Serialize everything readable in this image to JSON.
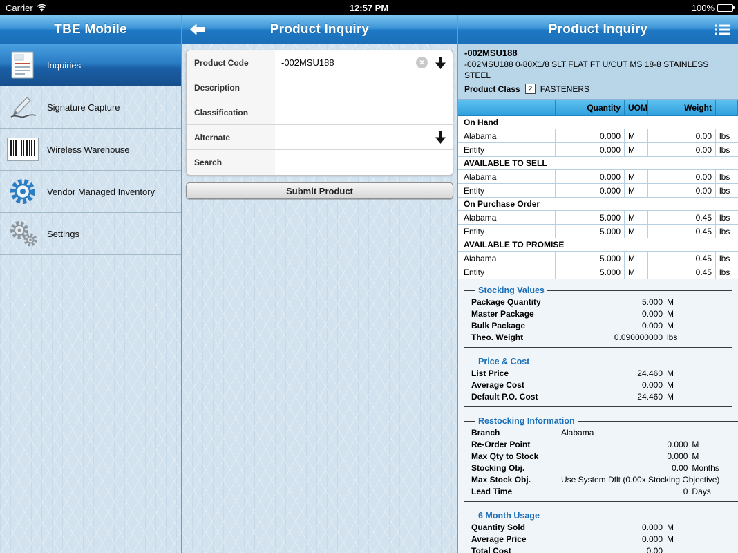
{
  "status_bar": {
    "carrier": "Carrier",
    "time": "12:57 PM",
    "battery": "100%"
  },
  "sidebar": {
    "title": "TBE Mobile",
    "items": [
      {
        "label": "Inquiries",
        "icon": "document-icon",
        "selected": true
      },
      {
        "label": "Signature Capture",
        "icon": "signature-icon",
        "selected": false
      },
      {
        "label": "Wireless Warehouse",
        "icon": "barcode-icon",
        "selected": false
      },
      {
        "label": "Vendor Managed Inventory",
        "icon": "vmi-gear-icon",
        "selected": false
      },
      {
        "label": "Settings",
        "icon": "gears-icon",
        "selected": false
      }
    ]
  },
  "form_panel": {
    "title": "Product Inquiry",
    "fields": [
      {
        "label": "Product Code",
        "value": "-002MSU188",
        "clear": true,
        "arrow": true
      },
      {
        "label": "Description",
        "value": "",
        "clear": false,
        "arrow": false
      },
      {
        "label": "Classification",
        "value": "",
        "clear": false,
        "arrow": false
      },
      {
        "label": "Alternate",
        "value": "",
        "clear": false,
        "arrow": true
      },
      {
        "label": "Search",
        "value": "",
        "clear": false,
        "arrow": false
      }
    ],
    "submit_label": "Submit Product"
  },
  "detail_panel": {
    "title": "Product Inquiry",
    "product": {
      "code": "-002MSU188",
      "description": "-002MSU188 0-80X1/8 SLT FLAT FT U/CUT MS 18-8 STAINLESS STEEL",
      "class_label": "Product Class",
      "class_code": "2",
      "class_name": "FASTENERS"
    },
    "table": {
      "headers": [
        "",
        "Quantity",
        "UOM",
        "Weight",
        ""
      ],
      "sections": [
        {
          "name": "On Hand",
          "rows": [
            [
              "Alabama",
              "0.000",
              "M",
              "0.00",
              "lbs"
            ],
            [
              "Entity",
              "0.000",
              "M",
              "0.00",
              "lbs"
            ]
          ]
        },
        {
          "name": "AVAILABLE TO SELL",
          "rows": [
            [
              "Alabama",
              "0.000",
              "M",
              "0.00",
              "lbs"
            ],
            [
              "Entity",
              "0.000",
              "M",
              "0.00",
              "lbs"
            ]
          ]
        },
        {
          "name": "On Purchase Order",
          "rows": [
            [
              "Alabama",
              "5.000",
              "M",
              "0.45",
              "lbs"
            ],
            [
              "Entity",
              "5.000",
              "M",
              "0.45",
              "lbs"
            ]
          ]
        },
        {
          "name": "AVAILABLE TO PROMISE",
          "rows": [
            [
              "Alabama",
              "5.000",
              "M",
              "0.45",
              "lbs"
            ],
            [
              "Entity",
              "5.000",
              "M",
              "0.45",
              "lbs"
            ]
          ]
        }
      ]
    },
    "groups": [
      {
        "title": "Stocking Values",
        "rows": [
          {
            "label": "Package Quantity",
            "value": "5.000",
            "unit": "M"
          },
          {
            "label": "Master Package",
            "value": "0.000",
            "unit": "M"
          },
          {
            "label": "Bulk Package",
            "value": "0.000",
            "unit": "M"
          },
          {
            "label": "Theo. Weight",
            "value": "0.090000000",
            "unit": "lbs"
          }
        ]
      },
      {
        "title": "Price & Cost",
        "rows": [
          {
            "label": "List Price",
            "value": "24.460",
            "unit": "M"
          },
          {
            "label": "Average Cost",
            "value": "0.000",
            "unit": "M"
          },
          {
            "label": "Default P.O. Cost",
            "value": "24.460",
            "unit": "M"
          }
        ]
      },
      {
        "title": "Restocking Information",
        "rows": [
          {
            "label": "Branch",
            "value": "Alabama",
            "unit": "",
            "align": "left"
          },
          {
            "label": "Re-Order Point",
            "value": "0.000",
            "unit": "M"
          },
          {
            "label": "Max Qty to Stock",
            "value": "0.000",
            "unit": "M"
          },
          {
            "label": "Stocking Obj.",
            "value": "0.00",
            "unit": "Months"
          },
          {
            "label": "Max Stock Obj.",
            "value": "Use System Dflt (0.00x Stocking Objective)",
            "unit": ""
          },
          {
            "label": "Lead Time",
            "value": "0",
            "unit": "Days"
          }
        ]
      },
      {
        "title": "6 Month Usage",
        "rows": [
          {
            "label": "Quantity Sold",
            "value": "0.000",
            "unit": "M"
          },
          {
            "label": "Average Price",
            "value": "0.000",
            "unit": "M"
          },
          {
            "label": "Total Cost",
            "value": "0.00",
            "unit": ""
          }
        ]
      }
    ]
  },
  "colors": {
    "header_blue": "#1c6fb8",
    "selected_blue": "#1a5fa5",
    "table_header_blue": "#3aa8e0",
    "info_bg_blue": "#b9d5e8",
    "legend_blue": "#1a6fb8"
  }
}
